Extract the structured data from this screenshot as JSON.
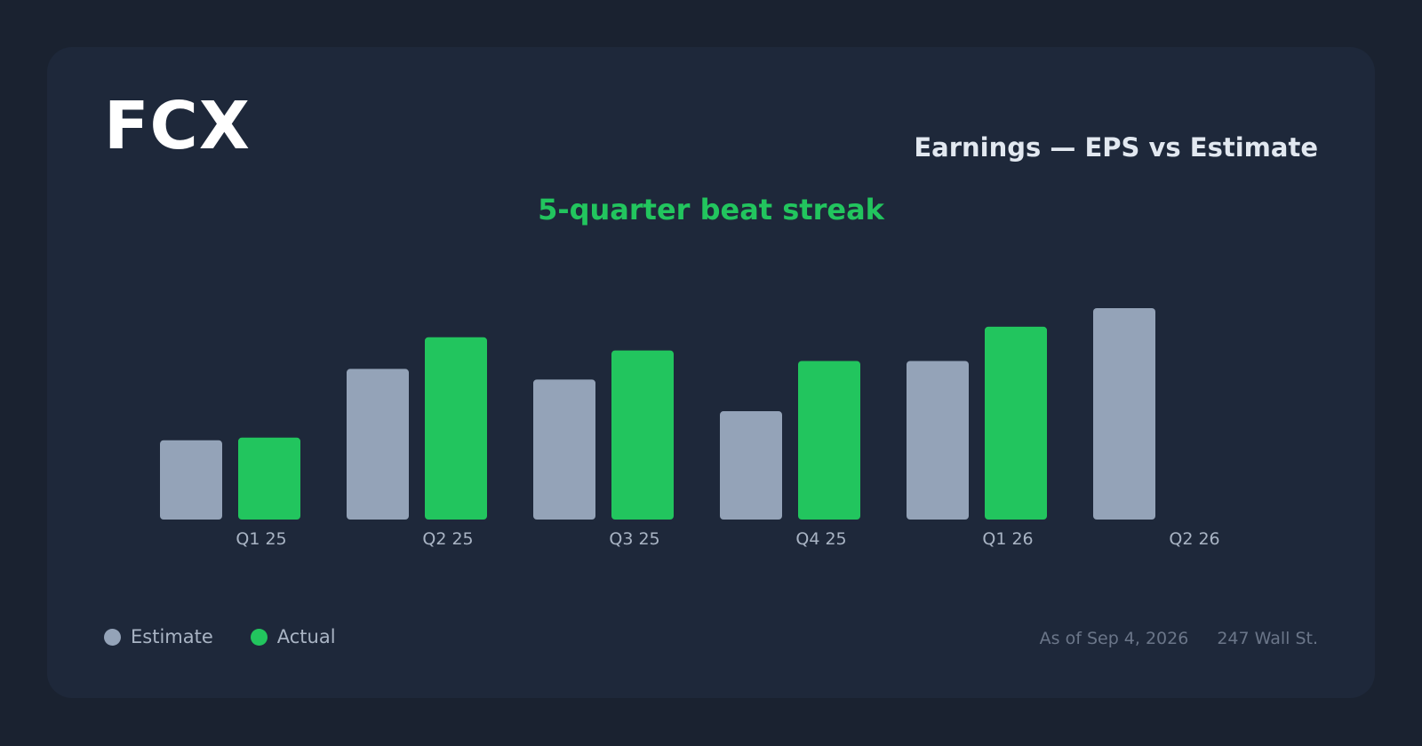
{
  "header": {
    "ticker": "FCX",
    "title": "Earnings — EPS vs Estimate",
    "subtitle": "5-quarter beat streak"
  },
  "colors": {
    "estimate": "#94a3b8",
    "actual": "#22c55e",
    "headline": "#22c55e"
  },
  "chart_data": {
    "type": "bar",
    "categories": [
      "Q1 25",
      "Q2 25",
      "Q3 25",
      "Q4 25",
      "Q1 26",
      "Q2 26"
    ],
    "series": [
      {
        "name": "Estimate",
        "values": [
          0.3,
          0.57,
          0.53,
          0.41,
          0.6,
          0.8
        ]
      },
      {
        "name": "Actual",
        "values": [
          0.31,
          0.69,
          0.64,
          0.6,
          0.73,
          null
        ]
      }
    ],
    "ylim": [
      0,
      0.8
    ],
    "grid": false,
    "legend": "bottom-left"
  },
  "legend": {
    "estimate_label": "Estimate",
    "actual_label": "Actual"
  },
  "footer": {
    "as_of": "As of Sep 4, 2026",
    "source": "247 Wall St."
  }
}
